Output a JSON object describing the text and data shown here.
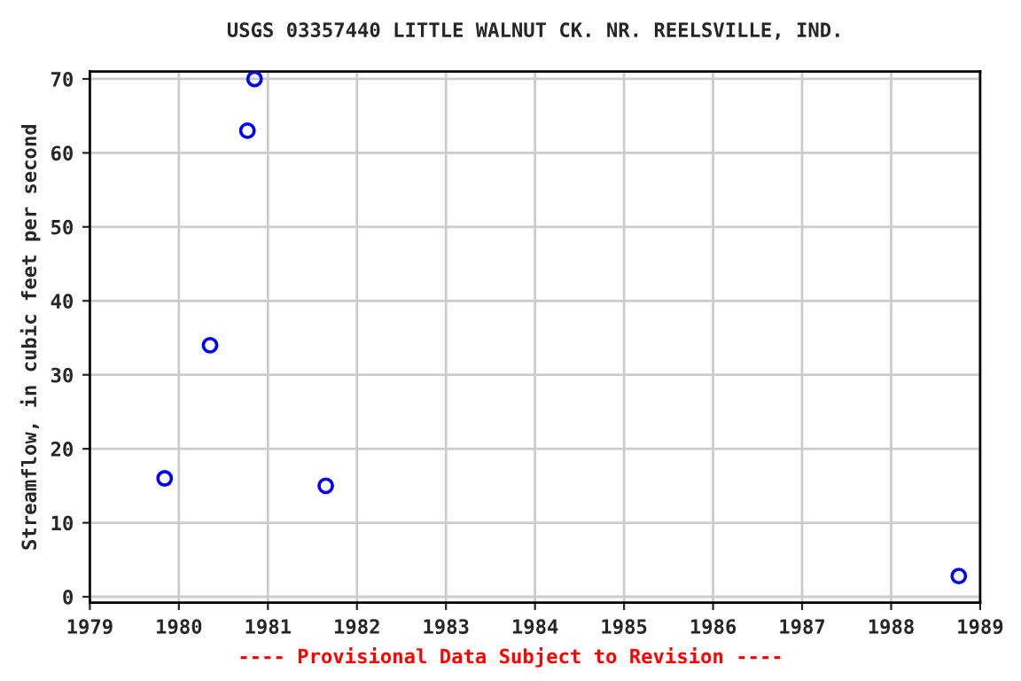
{
  "chart_data": {
    "type": "scatter",
    "title": "USGS 03357440 LITTLE WALNUT CK. NR. REELSVILLE, IND.",
    "ylabel": "Streamflow, in cubic feet per second",
    "annotations": [
      "---- Provisional Data Subject to Revision ----"
    ],
    "x": [
      1979.84,
      1980.35,
      1980.77,
      1980.85,
      1981.65,
      1988.76
    ],
    "series": [
      {
        "color": "#0000ff",
        "values": [
          16,
          34,
          63,
          70,
          15,
          2.8
        ]
      }
    ],
    "xlim": [
      1979,
      1989
    ],
    "xticks": [
      1979,
      1980,
      1981,
      1982,
      1983,
      1984,
      1985,
      1986,
      1987,
      1988,
      1989
    ],
    "ylim": [
      -0.8,
      71
    ],
    "yticks": [
      0,
      10,
      20,
      30,
      40,
      50,
      60,
      70
    ],
    "grid": true,
    "marker": "circle",
    "legend": false
  }
}
